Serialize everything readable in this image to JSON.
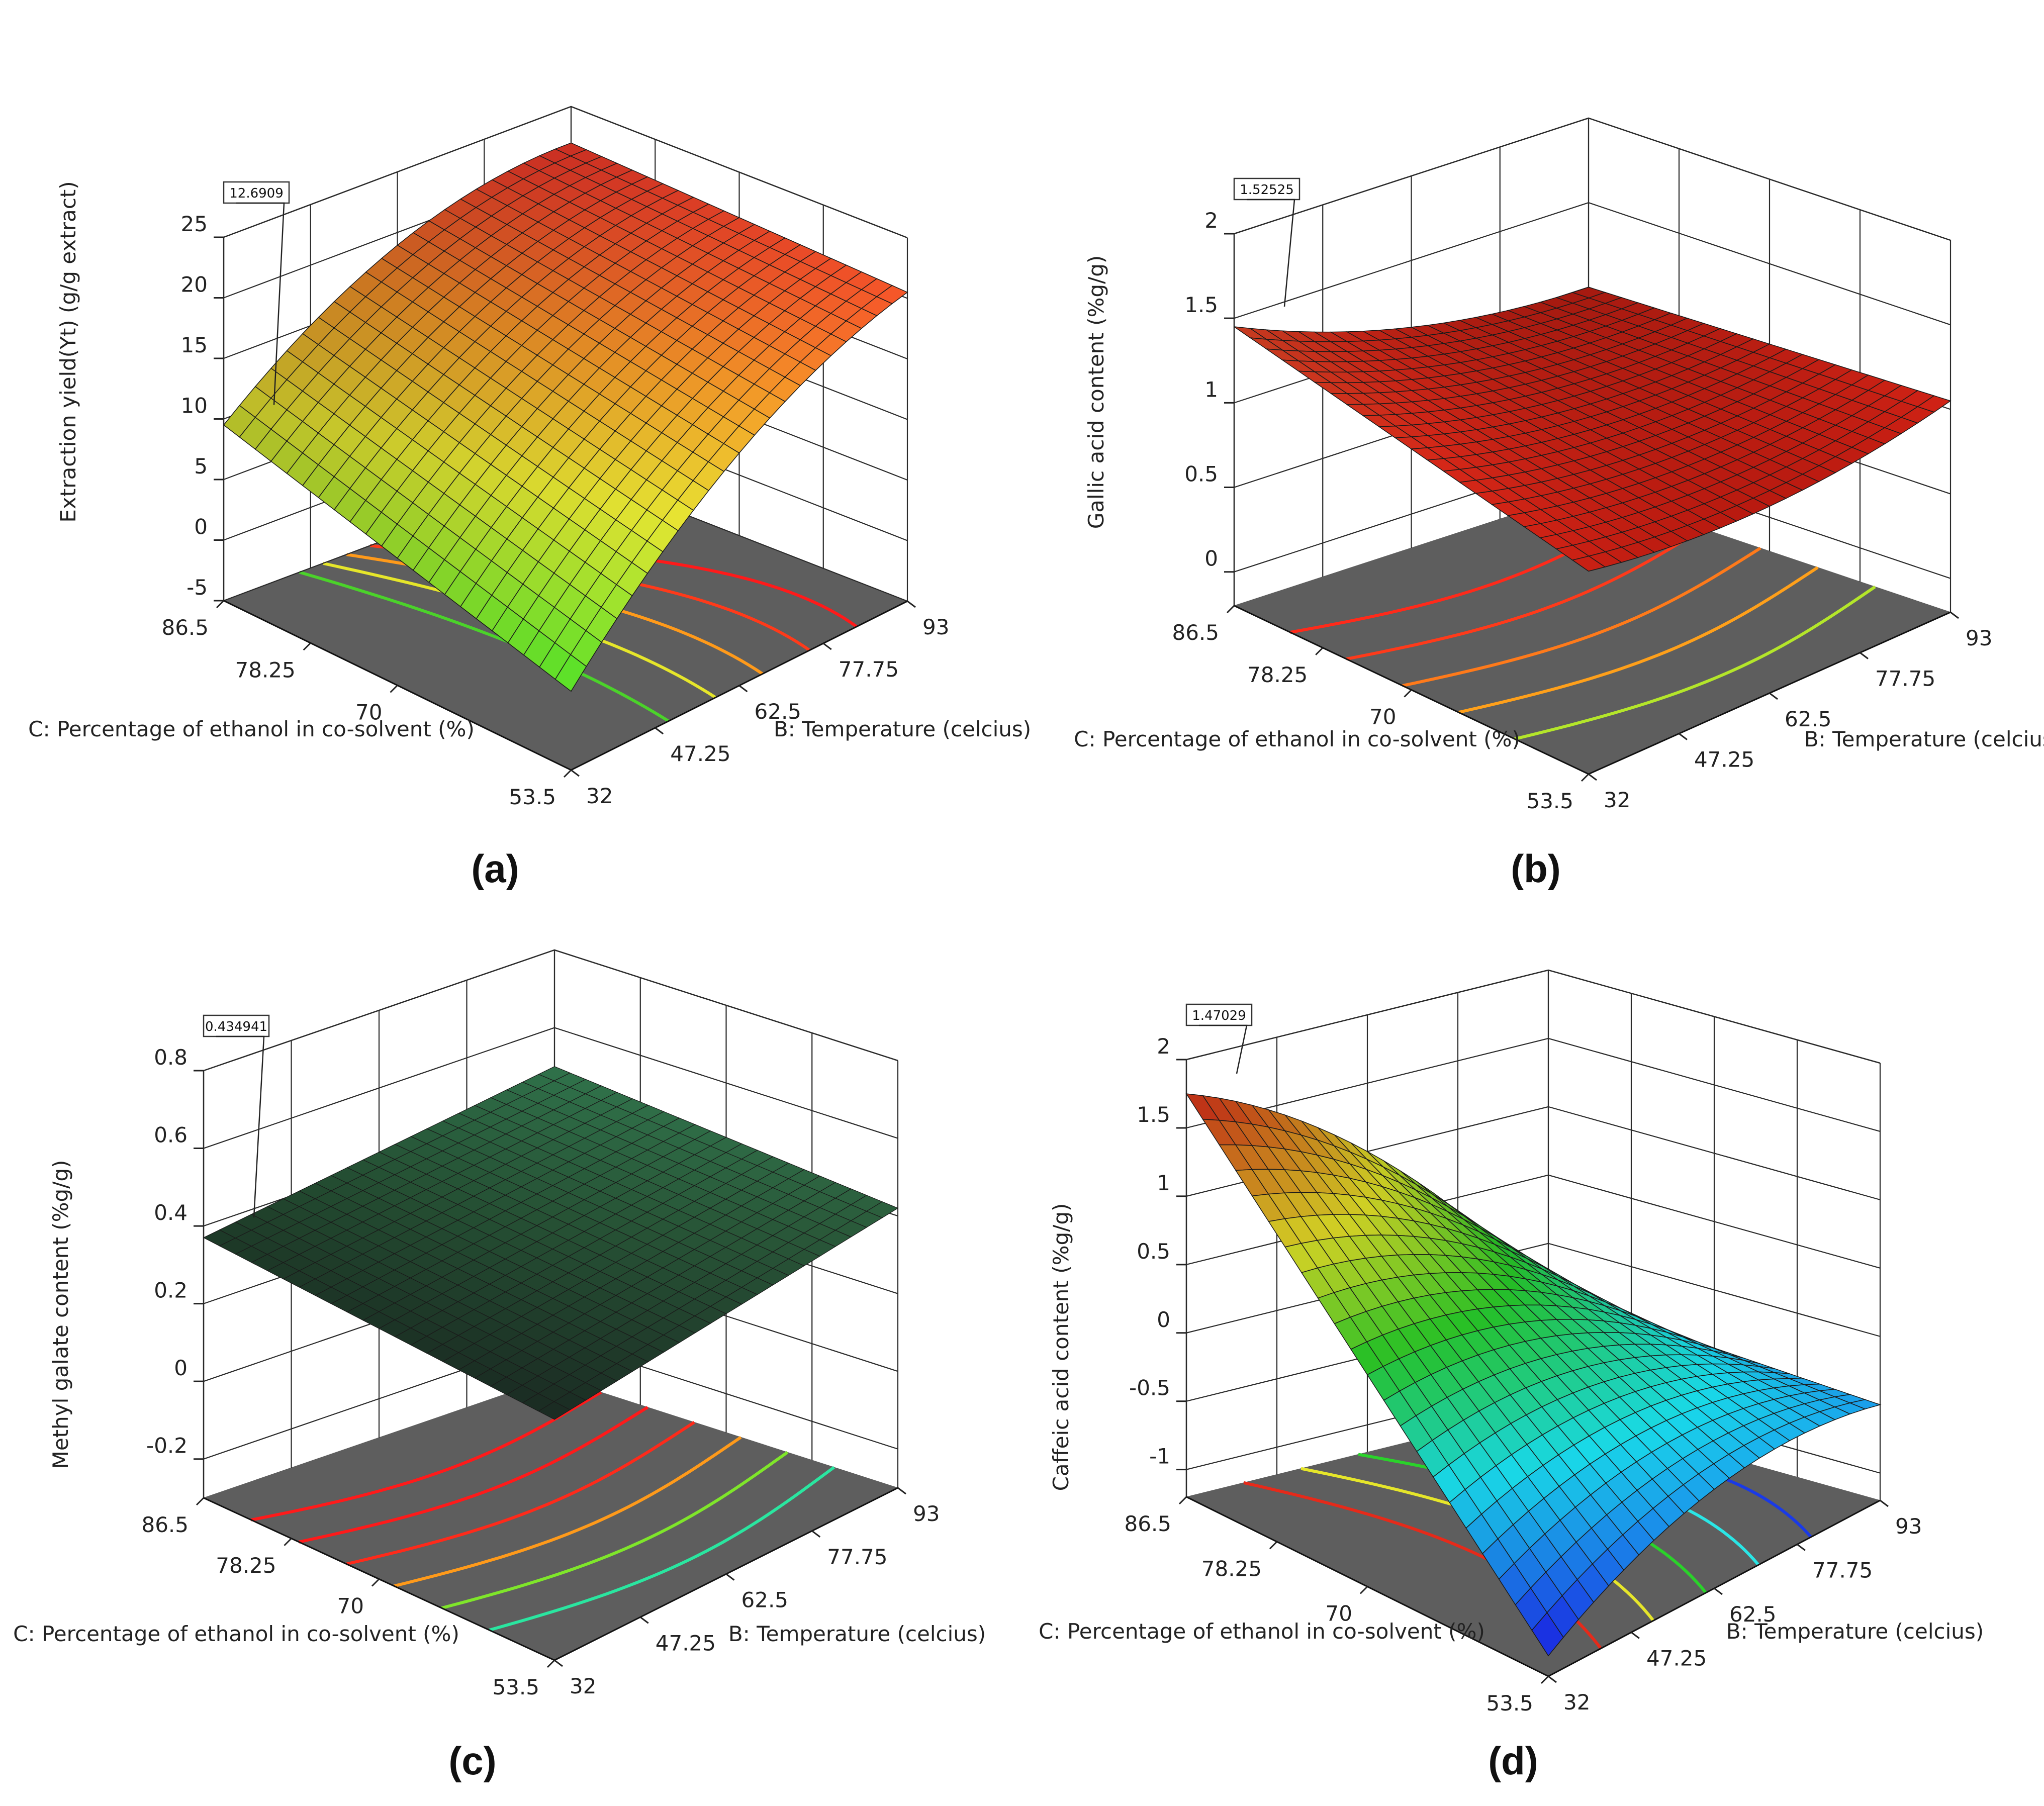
{
  "figure": {
    "panels": [
      {
        "letter": "(a)"
      },
      {
        "letter": "(b)"
      },
      {
        "letter": "(c)"
      },
      {
        "letter": "(d)"
      }
    ]
  },
  "chart_data": [
    {
      "type": "surface3d",
      "panel": "(a)",
      "zlabel": "Extraction yield(Yt) (g/g extract)",
      "xlabel": "C: Percentage of ethanol in co-solvent (%)",
      "ylabel": "B: Temperature (celcius)",
      "c_ticks": [
        "86.5",
        "78.25",
        "70",
        "53.5"
      ],
      "b_ticks": [
        "32",
        "47.25",
        "62.5",
        "77.75",
        "93"
      ],
      "z_ticks": [
        "25",
        "20",
        "15",
        "10",
        "5",
        "0",
        "-5"
      ],
      "zlim": [
        -5,
        25
      ],
      "c_range": [
        53.5,
        86.5
      ],
      "b_range": [
        32,
        93
      ],
      "marker_value": "12.6909",
      "colormap": "green-yellow-red",
      "corner_z": {
        "c_high_b_low": 9.5,
        "c_low_b_low": 1.5,
        "c_low_b_high": 20.5,
        "c_high_b_high": 22.0
      },
      "contour_colors": [
        "#4bd22a",
        "#e6e62a",
        "#ff9a1a",
        "#ff3a1a",
        "#ff1a1a"
      ]
    },
    {
      "type": "surface3d",
      "panel": "(b)",
      "zlabel": "Gallic acid content (%g/g)",
      "xlabel": "C: Percentage of ethanol in co-solvent (%)",
      "ylabel": "B: Temperature (celcius)",
      "c_ticks": [
        "86.5",
        "78.25",
        "70",
        "53.5"
      ],
      "b_ticks": [
        "32",
        "47.25",
        "62.5",
        "77.75",
        "93"
      ],
      "z_ticks": [
        "2",
        "1.5",
        "1",
        "0.5",
        "0"
      ],
      "zlim": [
        -0.2,
        2
      ],
      "c_range": [
        53.5,
        86.5
      ],
      "b_range": [
        32,
        93
      ],
      "marker_value": "1.52525",
      "colormap": "red",
      "corner_z": {
        "c_high_b_low": 1.45,
        "c_low_b_low": 1.0,
        "c_low_b_high": 1.05,
        "c_high_b_high": 1.0
      },
      "contour_colors": [
        "#ff2a1a",
        "#ff3a1a",
        "#ff7a1a",
        "#ffa01a",
        "#b4e62a"
      ]
    },
    {
      "type": "surface3d",
      "panel": "(c)",
      "zlabel": "Methyl galate content (%g/g)",
      "xlabel": "C: Percentage of ethanol in co-solvent (%)",
      "ylabel": "B: Temperature (celcius)",
      "c_ticks": [
        "86.5",
        "78.25",
        "70",
        "53.5"
      ],
      "b_ticks": [
        "32",
        "47.25",
        "62.5",
        "77.75",
        "93"
      ],
      "z_ticks": [
        "0.8",
        "0.6",
        "0.4",
        "0.2",
        "0",
        "-0.2"
      ],
      "zlim": [
        -0.3,
        0.8
      ],
      "c_range": [
        53.5,
        86.5
      ],
      "b_range": [
        32,
        93
      ],
      "marker_value": "0.434941",
      "colormap": "dark",
      "corner_z": {
        "c_high_b_low": 0.37,
        "c_low_b_low": 0.32,
        "c_low_b_high": 0.42,
        "c_high_b_high": 0.5
      },
      "contour_colors": [
        "#ff1a1a",
        "#ff1a1a",
        "#ff2a1a",
        "#ff9a1a",
        "#7fe62a",
        "#2ae6a0"
      ]
    },
    {
      "type": "surface3d",
      "panel": "(d)",
      "zlabel": "Caffeic acid content (%g/g)",
      "xlabel": "C: Percentage of ethanol in co-solvent (%)",
      "ylabel": "B: Temperature (celcius)",
      "c_ticks": [
        "86.5",
        "78.25",
        "70",
        "53.5"
      ],
      "b_ticks": [
        "32",
        "47.25",
        "62.5",
        "77.75",
        "93"
      ],
      "z_ticks": [
        "2",
        "1.5",
        "1",
        "0.5",
        "0",
        "-0.5",
        "-1"
      ],
      "zlim": [
        -1.2,
        2
      ],
      "c_range": [
        53.5,
        86.5
      ],
      "b_range": [
        32,
        93
      ],
      "marker_value": "1.47029",
      "colormap": "jet",
      "corner_z": {
        "c_high_b_low": 1.75,
        "c_low_b_low": -1.05,
        "c_low_b_high": -0.5,
        "c_high_b_high": -0.35
      },
      "contour_colors": [
        "#e62a1a",
        "#e6e62a",
        "#2ad22a",
        "#2ae6e6",
        "#1a3ae6"
      ]
    }
  ]
}
